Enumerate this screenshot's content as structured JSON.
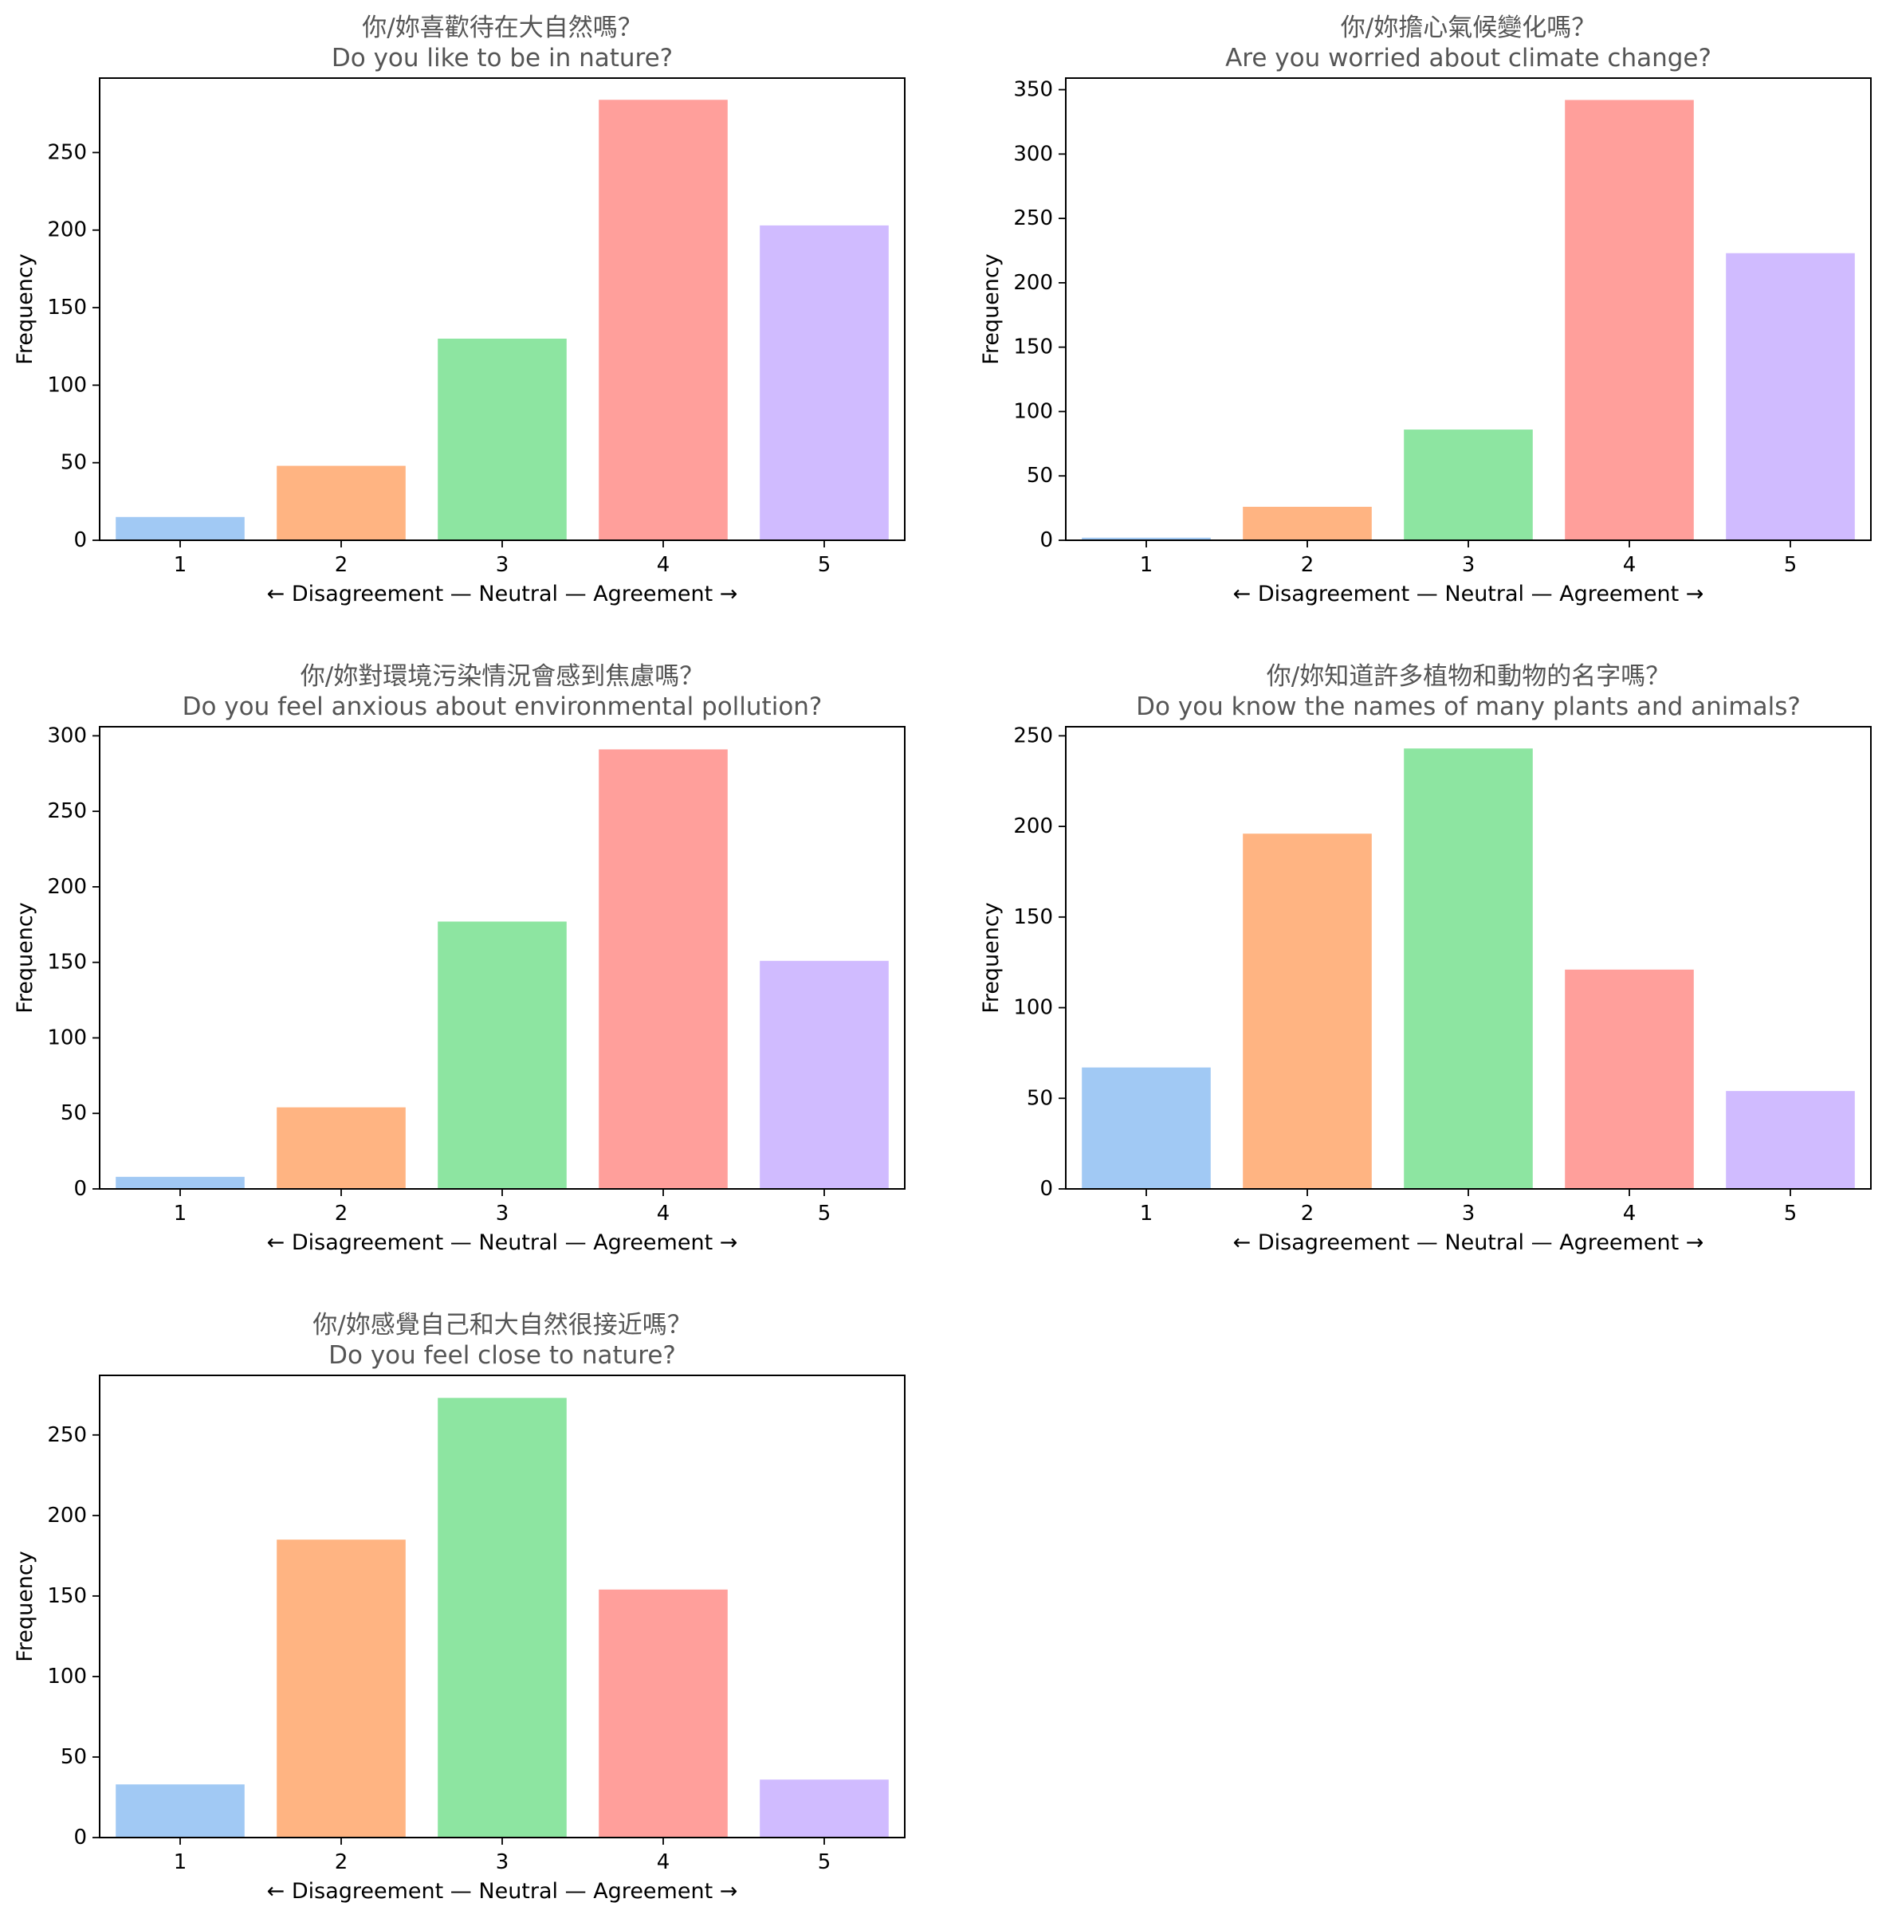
{
  "colors": {
    "bar_palette": [
      "#a1c9f4",
      "#ffb482",
      "#8de5a1",
      "#ff9f9b",
      "#d0bbff"
    ],
    "title": "#555555",
    "axis": "#000000"
  },
  "chart_data": [
    {
      "type": "bar",
      "title_zh": "你/妳喜歡待在大自然嗎？",
      "title_en": "Do you like to be in nature?",
      "xlabel": "← Disagreement — Neutral — Agreement →",
      "ylabel": "Frequency",
      "categories": [
        "1",
        "2",
        "3",
        "4",
        "5"
      ],
      "values": [
        15,
        48,
        130,
        284,
        203
      ],
      "ylim": [
        0,
        298
      ],
      "yticks": [
        0,
        50,
        100,
        150,
        200,
        250
      ],
      "grid": false
    },
    {
      "type": "bar",
      "title_zh": "你/妳擔心氣候變化嗎？",
      "title_en": "Are you worried about climate change?",
      "xlabel": "← Disagreement — Neutral — Agreement →",
      "ylabel": "Frequency",
      "categories": [
        "1",
        "2",
        "3",
        "4",
        "5"
      ],
      "values": [
        2,
        26,
        86,
        342,
        223
      ],
      "ylim": [
        0,
        359
      ],
      "yticks": [
        0,
        50,
        100,
        150,
        200,
        250,
        300,
        350
      ],
      "grid": false
    },
    {
      "type": "bar",
      "title_zh": "你/妳對環境污染情況會感到焦慮嗎？",
      "title_en": "Do you feel anxious about environmental pollution?",
      "xlabel": "← Disagreement — Neutral — Agreement →",
      "ylabel": "Frequency",
      "categories": [
        "1",
        "2",
        "3",
        "4",
        "5"
      ],
      "values": [
        8,
        54,
        177,
        291,
        151
      ],
      "ylim": [
        0,
        306
      ],
      "yticks": [
        0,
        50,
        100,
        150,
        200,
        250,
        300
      ],
      "grid": false
    },
    {
      "type": "bar",
      "title_zh": "你/妳知道許多植物和動物的名字嗎？",
      "title_en": "Do you know the names of many plants and animals?",
      "xlabel": "← Disagreement — Neutral — Agreement →",
      "ylabel": "Frequency",
      "categories": [
        "1",
        "2",
        "3",
        "4",
        "5"
      ],
      "values": [
        67,
        196,
        243,
        121,
        54
      ],
      "ylim": [
        0,
        255
      ],
      "yticks": [
        0,
        50,
        100,
        150,
        200,
        250
      ],
      "grid": false
    },
    {
      "type": "bar",
      "title_zh": "你/妳感覺自己和大自然很接近嗎？",
      "title_en": "Do you feel close to nature?",
      "xlabel": "← Disagreement — Neutral — Agreement →",
      "ylabel": "Frequency",
      "categories": [
        "1",
        "2",
        "3",
        "4",
        "5"
      ],
      "values": [
        33,
        185,
        273,
        154,
        36
      ],
      "ylim": [
        0,
        287
      ],
      "yticks": [
        0,
        50,
        100,
        150,
        200,
        250
      ],
      "grid": false
    }
  ]
}
